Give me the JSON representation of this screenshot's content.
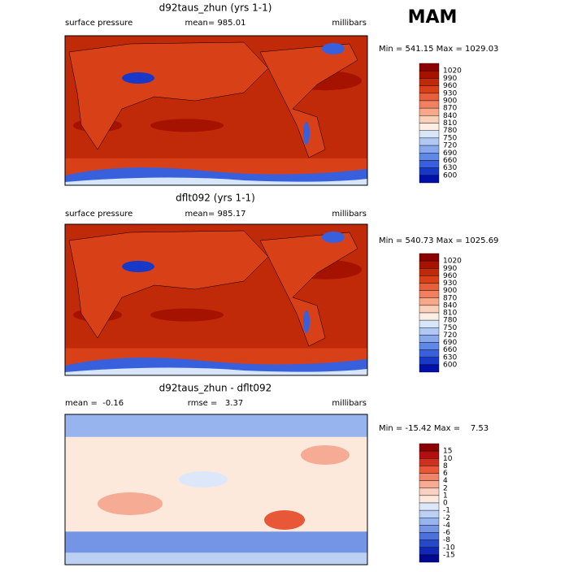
{
  "header": {
    "season": "MAM"
  },
  "panels": [
    {
      "title": "d92taus_zhun (yrs 1-1)",
      "left": "surface pressure",
      "center": "mean= 985.01",
      "right": "millibars",
      "minmax": "Min = 541.15 Max = 1029.03",
      "colorbar": [
        1020,
        990,
        960,
        930,
        900,
        870,
        840,
        810,
        780,
        750,
        720,
        690,
        660,
        630,
        600
      ]
    },
    {
      "title": "dflt092 (yrs 1-1)",
      "left": "surface pressure",
      "center": "mean= 985.17",
      "right": "millibars",
      "minmax": "Min = 540.73 Max = 1025.69",
      "colorbar": [
        1020,
        990,
        960,
        930,
        900,
        870,
        840,
        810,
        780,
        750,
        720,
        690,
        660,
        630,
        600
      ]
    },
    {
      "title": "d92taus_zhun - dflt092",
      "left": "mean =  -0.16",
      "center": "rmse =   3.37",
      "right": "millibars",
      "minmax": "Min = -15.42 Max =    7.53",
      "colorbar": [
        15,
        10,
        8,
        6,
        4,
        2,
        1,
        0,
        -1,
        -2,
        -4,
        -6,
        -8,
        -10,
        -15
      ]
    }
  ]
}
